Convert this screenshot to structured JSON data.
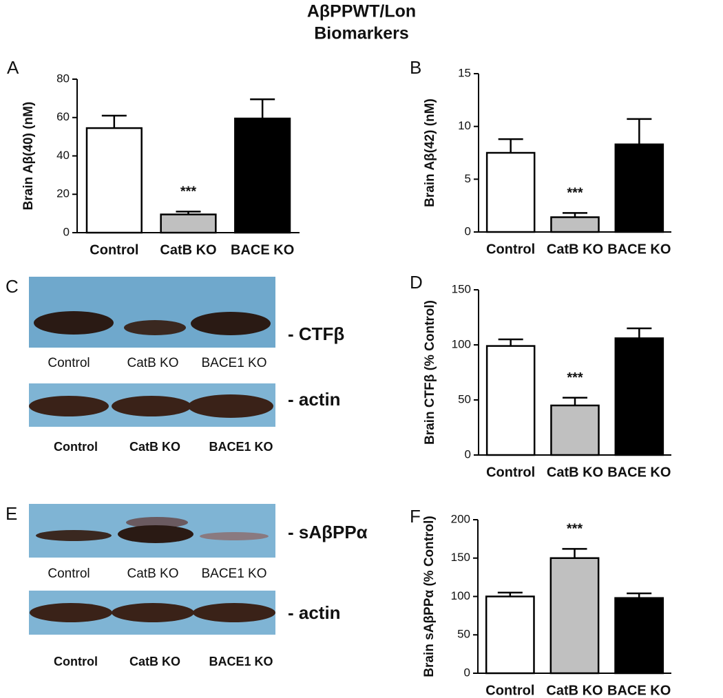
{
  "title": [
    "AβPPWT/Lon",
    "Biomarkers"
  ],
  "chart_data": [
    {
      "panel": "A",
      "type": "bar",
      "ylabel": "Brain Aβ(40) (nM)",
      "categories": [
        "Control",
        "CatB  KO",
        "BACE KO"
      ],
      "values": [
        54.5,
        9.5,
        59.5
      ],
      "errors": [
        6.5,
        1.5,
        10
      ],
      "significance": [
        null,
        "***",
        null
      ],
      "colors": [
        "#ffffff",
        "#c0c0c0",
        "#000000"
      ],
      "ylim": [
        0,
        80
      ],
      "yticks": [
        0,
        20,
        40,
        60,
        80
      ]
    },
    {
      "panel": "B",
      "type": "bar",
      "ylabel": "Brain Aβ(42)  (nM)",
      "categories": [
        "Control",
        "CatB  KO",
        "BACE KO"
      ],
      "values": [
        7.5,
        1.4,
        8.3
      ],
      "errors": [
        1.3,
        0.4,
        2.4
      ],
      "significance": [
        null,
        "***",
        null
      ],
      "colors": [
        "#ffffff",
        "#c0c0c0",
        "#000000"
      ],
      "ylim": [
        0,
        15
      ],
      "yticks": [
        0,
        5,
        10,
        15
      ]
    },
    {
      "panel": "D",
      "type": "bar",
      "ylabel": "Brain CTFβ (% Control)",
      "categories": [
        "Control",
        "CatB  KO",
        "BACE KO"
      ],
      "values": [
        99,
        45,
        106
      ],
      "errors": [
        6,
        7,
        9
      ],
      "significance": [
        null,
        "***",
        null
      ],
      "colors": [
        "#ffffff",
        "#c0c0c0",
        "#000000"
      ],
      "ylim": [
        0,
        150
      ],
      "yticks": [
        0,
        50,
        100,
        150
      ]
    },
    {
      "panel": "F",
      "type": "bar",
      "ylabel": "Brain sAβPPα (% Control)",
      "categories": [
        "Control",
        "CatB  KO",
        "BACE KO"
      ],
      "values": [
        100,
        150,
        98
      ],
      "errors": [
        5,
        12,
        6
      ],
      "significance": [
        null,
        "***",
        null
      ],
      "colors": [
        "#ffffff",
        "#c0c0c0",
        "#000000"
      ],
      "ylim": [
        0,
        200
      ],
      "yticks": [
        0,
        50,
        100,
        150,
        200
      ]
    }
  ],
  "blots": [
    {
      "panel": "C",
      "marker": "- CTFβ",
      "lanes": [
        "Control",
        "CatB KO",
        "BACE1 KO"
      ],
      "loading_marker": "- actin",
      "loading_lanes": [
        "Control",
        "CatB KO",
        "BACE1 KO"
      ]
    },
    {
      "panel": "E",
      "marker": "- sAβPPα",
      "lanes": [
        "Control",
        "CatB KO",
        "BACE1 KO"
      ],
      "loading_marker": "- actin",
      "loading_lanes": [
        "Control",
        "CatB KO",
        "BACE1 KO"
      ]
    }
  ]
}
